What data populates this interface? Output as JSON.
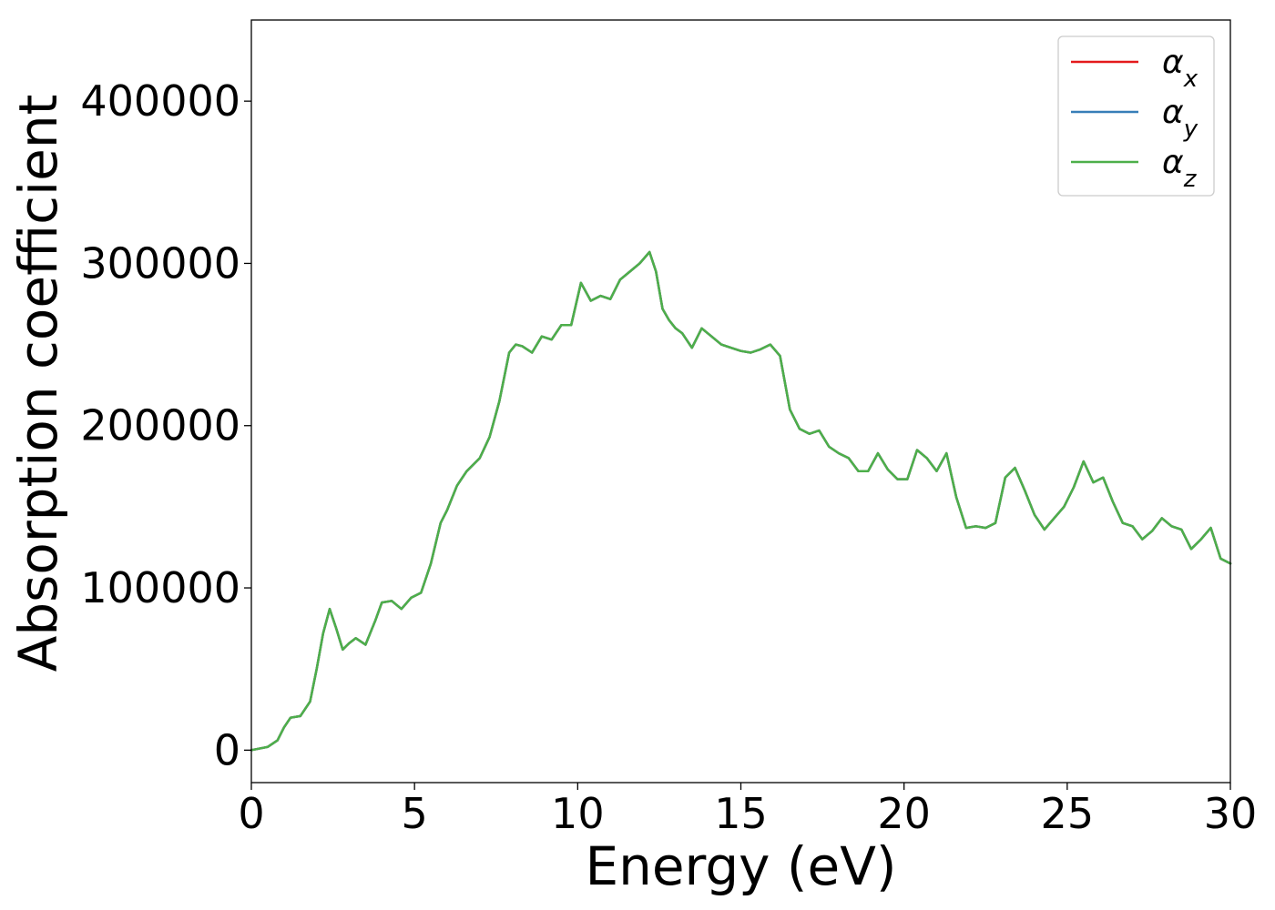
{
  "chart_data": {
    "type": "line",
    "xlabel": "Energy (eV)",
    "ylabel": "Absorption coefficient",
    "xlim": [
      0,
      30
    ],
    "ylim": [
      -20000,
      450000
    ],
    "xticks": [
      0,
      5,
      10,
      15,
      20,
      25,
      30
    ],
    "yticks": [
      0,
      100000,
      200000,
      300000,
      400000
    ],
    "xtick_labels": [
      "0",
      "5",
      "10",
      "15",
      "20",
      "25",
      "30"
    ],
    "ytick_labels": [
      "0",
      "100000",
      "200000",
      "300000",
      "400000"
    ],
    "grid": false,
    "legend_position": "top-right",
    "legend": [
      {
        "name": "αx",
        "base": "α",
        "sub": "x",
        "color": "#e41a1c"
      },
      {
        "name": "αy",
        "base": "α",
        "sub": "y",
        "color": "#377eb8"
      },
      {
        "name": "αz",
        "base": "α",
        "sub": "z",
        "color": "#4daf4a"
      }
    ],
    "x": [
      0,
      0.5,
      0.8,
      1.0,
      1.2,
      1.5,
      1.8,
      2.0,
      2.2,
      2.4,
      2.6,
      2.8,
      3.0,
      3.2,
      3.5,
      3.8,
      4.0,
      4.3,
      4.6,
      4.9,
      5.2,
      5.5,
      5.8,
      6.0,
      6.3,
      6.6,
      7.0,
      7.3,
      7.6,
      7.9,
      8.1,
      8.3,
      8.6,
      8.9,
      9.2,
      9.5,
      9.8,
      10.1,
      10.4,
      10.7,
      11.0,
      11.3,
      11.6,
      11.9,
      12.2,
      12.4,
      12.6,
      12.8,
      13.0,
      13.2,
      13.5,
      13.8,
      14.1,
      14.4,
      14.7,
      15.0,
      15.3,
      15.6,
      15.9,
      16.2,
      16.5,
      16.8,
      17.1,
      17.4,
      17.7,
      18.0,
      18.3,
      18.6,
      18.9,
      19.2,
      19.5,
      19.8,
      20.1,
      20.4,
      20.7,
      21.0,
      21.3,
      21.6,
      21.9,
      22.2,
      22.5,
      22.8,
      23.1,
      23.4,
      23.7,
      24.0,
      24.3,
      24.6,
      24.9,
      25.2,
      25.5,
      25.8,
      26.1,
      26.4,
      26.7,
      27.0,
      27.3,
      27.6,
      27.9,
      28.2,
      28.5,
      28.8,
      29.1,
      29.4,
      29.7,
      30.0
    ],
    "series": [
      {
        "name": "αx",
        "color": "#e41a1c",
        "values": [
          0,
          2000,
          6000,
          14000,
          20000,
          21000,
          30000,
          50000,
          72000,
          87000,
          75000,
          62000,
          66000,
          69000,
          65000,
          80000,
          91000,
          92000,
          87000,
          94000,
          97000,
          115000,
          140000,
          148000,
          163000,
          172000,
          180000,
          193000,
          215000,
          245000,
          250000,
          249000,
          245000,
          255000,
          253000,
          262000,
          262000,
          288000,
          277000,
          280000,
          278000,
          290000,
          295000,
          300000,
          307000,
          295000,
          272000,
          265000,
          260000,
          257000,
          248000,
          260000,
          255000,
          250000,
          248000,
          246000,
          245000,
          247000,
          250000,
          243000,
          210000,
          198000,
          195000,
          197000,
          187000,
          183000,
          180000,
          172000,
          172000,
          183000,
          173000,
          167000,
          167000,
          185000,
          180000,
          172000,
          183000,
          156000,
          137000,
          138000,
          137000,
          140000,
          168000,
          174000,
          160000,
          145000,
          136000,
          143000,
          150000,
          162000,
          178000,
          165000,
          168000,
          153000,
          140000,
          138000,
          130000,
          135000,
          143000,
          138000,
          136000,
          124000,
          130000,
          137000,
          118000,
          115000
        ]
      },
      {
        "name": "αy",
        "color": "#377eb8",
        "values": [
          0,
          2000,
          6000,
          14000,
          20000,
          21000,
          30000,
          50000,
          72000,
          87000,
          75000,
          62000,
          66000,
          69000,
          65000,
          80000,
          91000,
          92000,
          87000,
          94000,
          97000,
          115000,
          140000,
          148000,
          163000,
          172000,
          180000,
          193000,
          215000,
          245000,
          250000,
          249000,
          245000,
          255000,
          253000,
          262000,
          262000,
          288000,
          277000,
          280000,
          278000,
          290000,
          295000,
          300000,
          307000,
          295000,
          272000,
          265000,
          260000,
          257000,
          248000,
          260000,
          255000,
          250000,
          248000,
          246000,
          245000,
          247000,
          250000,
          243000,
          210000,
          198000,
          195000,
          197000,
          187000,
          183000,
          180000,
          172000,
          172000,
          183000,
          173000,
          167000,
          167000,
          185000,
          180000,
          172000,
          183000,
          156000,
          137000,
          138000,
          137000,
          140000,
          168000,
          174000,
          160000,
          145000,
          136000,
          143000,
          150000,
          162000,
          178000,
          165000,
          168000,
          153000,
          140000,
          138000,
          130000,
          135000,
          143000,
          138000,
          136000,
          124000,
          130000,
          137000,
          118000,
          115000
        ]
      },
      {
        "name": "αz",
        "color": "#4daf4a",
        "values": [
          0,
          2000,
          6000,
          14000,
          20000,
          21000,
          30000,
          50000,
          72000,
          87000,
          75000,
          62000,
          66000,
          69000,
          65000,
          80000,
          91000,
          92000,
          87000,
          94000,
          97000,
          115000,
          140000,
          148000,
          163000,
          172000,
          180000,
          193000,
          215000,
          245000,
          250000,
          249000,
          245000,
          255000,
          253000,
          262000,
          262000,
          288000,
          277000,
          280000,
          278000,
          290000,
          295000,
          300000,
          307000,
          295000,
          272000,
          265000,
          260000,
          257000,
          248000,
          260000,
          255000,
          250000,
          248000,
          246000,
          245000,
          247000,
          250000,
          243000,
          210000,
          198000,
          195000,
          197000,
          187000,
          183000,
          180000,
          172000,
          172000,
          183000,
          173000,
          167000,
          167000,
          185000,
          180000,
          172000,
          183000,
          156000,
          137000,
          138000,
          137000,
          140000,
          168000,
          174000,
          160000,
          145000,
          136000,
          143000,
          150000,
          162000,
          178000,
          165000,
          168000,
          153000,
          140000,
          138000,
          130000,
          135000,
          143000,
          138000,
          136000,
          124000,
          130000,
          137000,
          118000,
          115000
        ]
      }
    ]
  }
}
